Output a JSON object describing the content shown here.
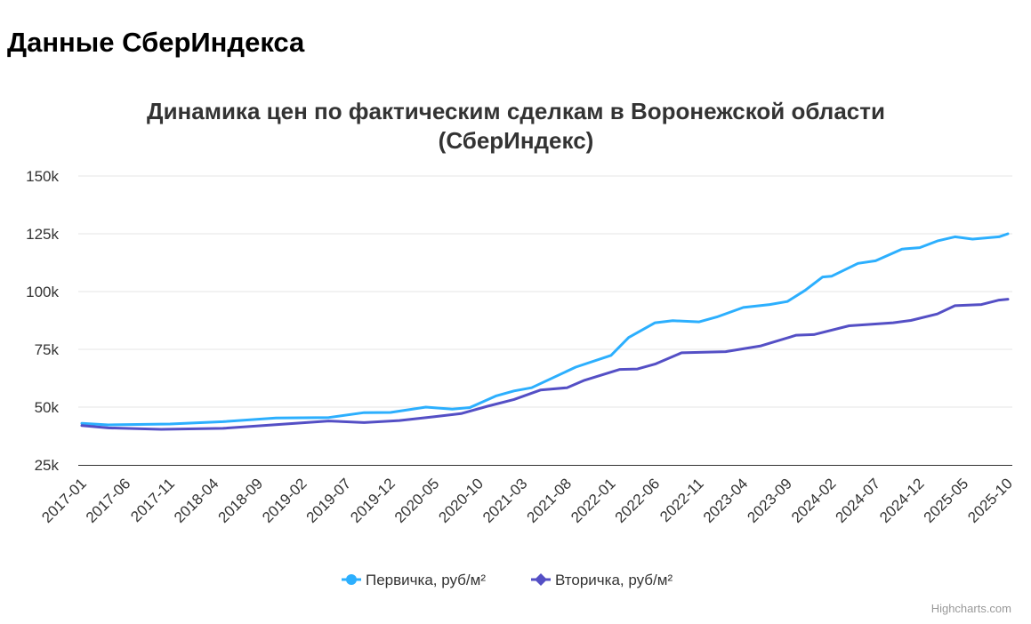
{
  "page": {
    "title": "Данные СберИндекса"
  },
  "chart_data": {
    "type": "line",
    "title_lines": [
      "Динамика цен по фактическим сделкам в Воронежской области",
      "(СберИндекс)"
    ],
    "xlabel": "",
    "ylabel": "",
    "x_start": "2017-01",
    "x_end": "2025-10",
    "x_ticks": [
      "2017-01",
      "2017-06",
      "2017-11",
      "2018-04",
      "2018-09",
      "2019-02",
      "2019-07",
      "2019-12",
      "2020-05",
      "2020-10",
      "2021-03",
      "2021-08",
      "2022-01",
      "2022-06",
      "2022-11",
      "2023-04",
      "2023-09",
      "2024-02",
      "2024-07",
      "2024-12",
      "2025-05",
      "2025-10"
    ],
    "y_ticks": [
      25000,
      50000,
      75000,
      100000,
      125000,
      150000
    ],
    "y_tick_labels": [
      "25k",
      "50k",
      "75k",
      "100k",
      "125k",
      "150k"
    ],
    "ylim": [
      25000,
      150000
    ],
    "grid": true,
    "legend_position": "bottom-center",
    "credits": "Highcharts.com",
    "series": [
      {
        "name": "Первичка, руб/м²",
        "color": "#2caffe",
        "marker": "circle",
        "points": [
          [
            "2017-01",
            43000
          ],
          [
            "2017-04",
            42300
          ],
          [
            "2017-11",
            42700
          ],
          [
            "2018-05",
            43700
          ],
          [
            "2018-11",
            45300
          ],
          [
            "2019-05",
            45500
          ],
          [
            "2019-09",
            47600
          ],
          [
            "2019-12",
            47700
          ],
          [
            "2020-04",
            50000
          ],
          [
            "2020-07",
            49100
          ],
          [
            "2020-09",
            49800
          ],
          [
            "2020-12",
            54900
          ],
          [
            "2021-02",
            57000
          ],
          [
            "2021-04",
            58400
          ],
          [
            "2021-09",
            67300
          ],
          [
            "2022-01",
            72400
          ],
          [
            "2022-03",
            80100
          ],
          [
            "2022-06",
            86500
          ],
          [
            "2022-08",
            87400
          ],
          [
            "2022-11",
            86900
          ],
          [
            "2023-01",
            89000
          ],
          [
            "2023-04",
            93100
          ],
          [
            "2023-07",
            94400
          ],
          [
            "2023-09",
            95700
          ],
          [
            "2023-11",
            100500
          ],
          [
            "2024-01",
            106300
          ],
          [
            "2024-02",
            106600
          ],
          [
            "2024-05",
            112200
          ],
          [
            "2024-07",
            113300
          ],
          [
            "2024-10",
            118400
          ],
          [
            "2024-12",
            119000
          ],
          [
            "2025-02",
            121900
          ],
          [
            "2025-04",
            123700
          ],
          [
            "2025-06",
            122700
          ],
          [
            "2025-09",
            123700
          ],
          [
            "2025-10",
            125000
          ]
        ]
      },
      {
        "name": "Вторичка, руб/м²",
        "color": "#544fc5",
        "marker": "diamond",
        "points": [
          [
            "2017-01",
            42000
          ],
          [
            "2017-04",
            41000
          ],
          [
            "2017-10",
            40400
          ],
          [
            "2018-05",
            40800
          ],
          [
            "2018-11",
            42400
          ],
          [
            "2019-05",
            44000
          ],
          [
            "2019-09",
            43300
          ],
          [
            "2020-01",
            44200
          ],
          [
            "2020-05",
            45900
          ],
          [
            "2020-08",
            47200
          ],
          [
            "2020-11",
            50400
          ],
          [
            "2021-02",
            53300
          ],
          [
            "2021-05",
            57400
          ],
          [
            "2021-08",
            58400
          ],
          [
            "2021-10",
            61600
          ],
          [
            "2022-02",
            66300
          ],
          [
            "2022-04",
            66500
          ],
          [
            "2022-06",
            68600
          ],
          [
            "2022-09",
            73500
          ],
          [
            "2023-02",
            74000
          ],
          [
            "2023-06",
            76500
          ],
          [
            "2023-10",
            81100
          ],
          [
            "2023-12",
            81400
          ],
          [
            "2024-04",
            85200
          ],
          [
            "2024-09",
            86500
          ],
          [
            "2024-11",
            87500
          ],
          [
            "2025-02",
            90300
          ],
          [
            "2025-04",
            93900
          ],
          [
            "2025-07",
            94400
          ],
          [
            "2025-09",
            96300
          ],
          [
            "2025-10",
            96700
          ]
        ]
      }
    ]
  }
}
